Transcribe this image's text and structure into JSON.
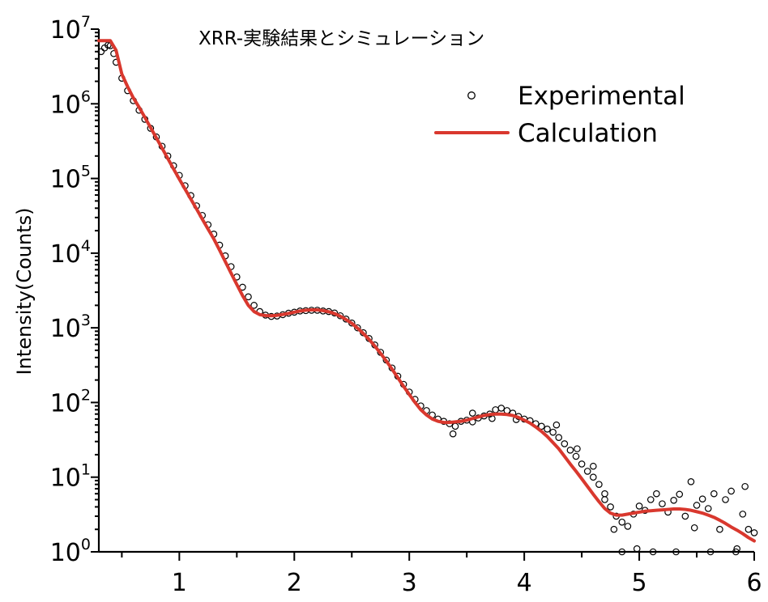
{
  "chart_data": {
    "type": "scatter",
    "title": "XRR-実験結果とシミュレーション",
    "xlabel": "",
    "ylabel": "Intensity(Counts)",
    "xlim": [
      0.3,
      6
    ],
    "ylim": [
      1,
      10000000
    ],
    "yscale": "log",
    "x_ticks": [
      1,
      2,
      3,
      4,
      5,
      6
    ],
    "y_ticks": [
      {
        "value": 1,
        "base": "10",
        "exp": "0"
      },
      {
        "value": 10,
        "base": "10",
        "exp": "1"
      },
      {
        "value": 100,
        "base": "10",
        "exp": "2"
      },
      {
        "value": 1000,
        "base": "10",
        "exp": "3"
      },
      {
        "value": 10000,
        "base": "10",
        "exp": "4"
      },
      {
        "value": 100000,
        "base": "10",
        "exp": "5"
      },
      {
        "value": 1000000,
        "base": "10",
        "exp": "6"
      },
      {
        "value": 10000000,
        "base": "10",
        "exp": "7"
      }
    ],
    "legend_position": "top-right",
    "grid": false,
    "series": [
      {
        "name": "Experimental",
        "style": "open-circle-markers",
        "color": "#000000",
        "points": [
          [
            0.32,
            5000000
          ],
          [
            0.35,
            5600000
          ],
          [
            0.38,
            6100000
          ],
          [
            0.4,
            6000000
          ],
          [
            0.43,
            4700000
          ],
          [
            0.45,
            3600000
          ],
          [
            0.5,
            2200000
          ],
          [
            0.55,
            1500000
          ],
          [
            0.6,
            1100000
          ],
          [
            0.65,
            820000
          ],
          [
            0.7,
            620000
          ],
          [
            0.75,
            470000
          ],
          [
            0.8,
            360000
          ],
          [
            0.85,
            270000
          ],
          [
            0.9,
            200000
          ],
          [
            0.95,
            148000
          ],
          [
            1.0,
            110000
          ],
          [
            1.05,
            80000
          ],
          [
            1.1,
            59000
          ],
          [
            1.15,
            43000
          ],
          [
            1.2,
            32000
          ],
          [
            1.25,
            24000
          ],
          [
            1.3,
            18000
          ],
          [
            1.35,
            12800
          ],
          [
            1.4,
            9200
          ],
          [
            1.45,
            6600
          ],
          [
            1.5,
            4800
          ],
          [
            1.55,
            3500
          ],
          [
            1.6,
            2600
          ],
          [
            1.65,
            2000
          ],
          [
            1.7,
            1650
          ],
          [
            1.75,
            1480
          ],
          [
            1.8,
            1420
          ],
          [
            1.85,
            1440
          ],
          [
            1.9,
            1500
          ],
          [
            1.95,
            1570
          ],
          [
            2.0,
            1620
          ],
          [
            2.05,
            1680
          ],
          [
            2.1,
            1700
          ],
          [
            2.15,
            1720
          ],
          [
            2.2,
            1720
          ],
          [
            2.25,
            1680
          ],
          [
            2.3,
            1650
          ],
          [
            2.35,
            1580
          ],
          [
            2.4,
            1450
          ],
          [
            2.45,
            1310
          ],
          [
            2.5,
            1160
          ],
          [
            2.55,
            1000
          ],
          [
            2.6,
            860
          ],
          [
            2.65,
            720
          ],
          [
            2.7,
            590
          ],
          [
            2.75,
            470
          ],
          [
            2.8,
            370
          ],
          [
            2.85,
            290
          ],
          [
            2.9,
            225
          ],
          [
            2.95,
            175
          ],
          [
            3.0,
            138
          ],
          [
            3.05,
            110
          ],
          [
            3.1,
            90
          ],
          [
            3.15,
            78
          ],
          [
            3.2,
            68
          ],
          [
            3.25,
            60
          ],
          [
            3.3,
            56
          ],
          [
            3.35,
            52
          ],
          [
            3.4,
            48
          ],
          [
            3.45,
            56
          ],
          [
            3.5,
            58
          ],
          [
            3.55,
            55
          ],
          [
            3.6,
            62
          ],
          [
            3.65,
            66
          ],
          [
            3.7,
            70
          ],
          [
            3.75,
            80
          ],
          [
            3.8,
            84
          ],
          [
            3.85,
            78
          ],
          [
            3.9,
            72
          ],
          [
            3.95,
            65
          ],
          [
            4.0,
            60
          ],
          [
            4.05,
            57
          ],
          [
            4.1,
            52
          ],
          [
            4.15,
            48
          ],
          [
            4.2,
            44
          ],
          [
            4.25,
            40
          ],
          [
            4.3,
            34
          ],
          [
            4.35,
            28
          ],
          [
            4.4,
            23
          ],
          [
            4.45,
            19
          ],
          [
            4.5,
            15
          ],
          [
            4.55,
            12
          ],
          [
            4.6,
            10
          ],
          [
            4.65,
            8
          ],
          [
            4.7,
            6
          ],
          [
            4.75,
            4
          ],
          [
            4.8,
            3
          ],
          [
            4.85,
            2.5
          ],
          [
            4.9,
            2.2
          ],
          [
            4.95,
            3.2
          ],
          [
            5.0,
            4.1
          ],
          [
            5.05,
            3.6
          ],
          [
            5.1,
            5.0
          ],
          [
            5.15,
            6.0
          ],
          [
            5.2,
            4.4
          ],
          [
            5.25,
            3.4
          ],
          [
            5.3,
            4.9
          ],
          [
            5.35,
            5.9
          ],
          [
            5.4,
            3.0
          ],
          [
            5.45,
            8.7
          ],
          [
            5.5,
            4.2
          ],
          [
            5.55,
            5.1
          ],
          [
            5.6,
            3.8
          ],
          [
            5.65,
            6.0
          ],
          [
            5.7,
            2.0
          ],
          [
            5.75,
            5.0
          ],
          [
            5.8,
            6.5
          ],
          [
            5.85,
            1.1
          ],
          [
            5.9,
            3.2
          ],
          [
            5.95,
            2.0
          ],
          [
            6.0,
            1.8
          ],
          [
            3.38,
            38
          ],
          [
            3.55,
            72
          ],
          [
            3.72,
            61
          ],
          [
            3.93,
            59
          ],
          [
            4.28,
            50
          ],
          [
            4.46,
            24
          ],
          [
            4.6,
            14
          ],
          [
            4.7,
            5
          ],
          [
            4.78,
            2
          ],
          [
            4.85,
            1.0
          ],
          [
            4.98,
            1.1
          ],
          [
            5.12,
            1.0
          ],
          [
            5.32,
            1.0
          ],
          [
            5.48,
            2.1
          ],
          [
            5.62,
            1.0
          ],
          [
            5.84,
            1.0
          ],
          [
            5.92,
            7.5
          ]
        ]
      },
      {
        "name": "Calculation",
        "style": "line",
        "color": "#d9382e",
        "points": [
          [
            0.3,
            7000000
          ],
          [
            0.4,
            7000000
          ],
          [
            0.45,
            5200000
          ],
          [
            0.5,
            2500000
          ],
          [
            0.55,
            1700000
          ],
          [
            0.6,
            1200000
          ],
          [
            0.65,
            900000
          ],
          [
            0.7,
            660000
          ],
          [
            0.75,
            480000
          ],
          [
            0.8,
            350000
          ],
          [
            0.85,
            255000
          ],
          [
            0.9,
            185000
          ],
          [
            0.95,
            134000
          ],
          [
            1.0,
            98000
          ],
          [
            1.05,
            72000
          ],
          [
            1.1,
            53000
          ],
          [
            1.15,
            39000
          ],
          [
            1.2,
            28500
          ],
          [
            1.25,
            21000
          ],
          [
            1.3,
            15500
          ],
          [
            1.35,
            11000
          ],
          [
            1.4,
            7700
          ],
          [
            1.45,
            5400
          ],
          [
            1.5,
            3800
          ],
          [
            1.55,
            2700
          ],
          [
            1.6,
            2000
          ],
          [
            1.65,
            1650
          ],
          [
            1.7,
            1500
          ],
          [
            1.75,
            1460
          ],
          [
            1.8,
            1450
          ],
          [
            1.85,
            1470
          ],
          [
            1.9,
            1510
          ],
          [
            1.95,
            1560
          ],
          [
            2.0,
            1620
          ],
          [
            2.05,
            1680
          ],
          [
            2.1,
            1720
          ],
          [
            2.15,
            1740
          ],
          [
            2.2,
            1740
          ],
          [
            2.25,
            1700
          ],
          [
            2.3,
            1640
          ],
          [
            2.35,
            1550
          ],
          [
            2.4,
            1430
          ],
          [
            2.45,
            1290
          ],
          [
            2.5,
            1150
          ],
          [
            2.55,
            990
          ],
          [
            2.6,
            840
          ],
          [
            2.65,
            700
          ],
          [
            2.7,
            570
          ],
          [
            2.75,
            455
          ],
          [
            2.8,
            360
          ],
          [
            2.85,
            280
          ],
          [
            2.9,
            215
          ],
          [
            2.95,
            165
          ],
          [
            3.0,
            128
          ],
          [
            3.05,
            100
          ],
          [
            3.1,
            80
          ],
          [
            3.15,
            68
          ],
          [
            3.2,
            60
          ],
          [
            3.25,
            56
          ],
          [
            3.3,
            54
          ],
          [
            3.35,
            54
          ],
          [
            3.4,
            55
          ],
          [
            3.45,
            56
          ],
          [
            3.5,
            58
          ],
          [
            3.55,
            61
          ],
          [
            3.6,
            64
          ],
          [
            3.65,
            67
          ],
          [
            3.7,
            69
          ],
          [
            3.75,
            70
          ],
          [
            3.8,
            70
          ],
          [
            3.85,
            69
          ],
          [
            3.9,
            67
          ],
          [
            3.95,
            63
          ],
          [
            4.0,
            58
          ],
          [
            4.05,
            53
          ],
          [
            4.1,
            47
          ],
          [
            4.15,
            41
          ],
          [
            4.2,
            35
          ],
          [
            4.25,
            29
          ],
          [
            4.3,
            24
          ],
          [
            4.35,
            19
          ],
          [
            4.4,
            15
          ],
          [
            4.45,
            12
          ],
          [
            4.5,
            9.5
          ],
          [
            4.55,
            7.5
          ],
          [
            4.6,
            5.9
          ],
          [
            4.65,
            4.7
          ],
          [
            4.7,
            3.8
          ],
          [
            4.75,
            3.3
          ],
          [
            4.8,
            3.1
          ],
          [
            4.85,
            3.1
          ],
          [
            4.9,
            3.2
          ],
          [
            4.95,
            3.3
          ],
          [
            5.0,
            3.4
          ],
          [
            5.05,
            3.5
          ],
          [
            5.1,
            3.55
          ],
          [
            5.15,
            3.6
          ],
          [
            5.2,
            3.65
          ],
          [
            5.25,
            3.7
          ],
          [
            5.3,
            3.75
          ],
          [
            5.35,
            3.75
          ],
          [
            5.4,
            3.7
          ],
          [
            5.45,
            3.6
          ],
          [
            5.5,
            3.45
          ],
          [
            5.55,
            3.3
          ],
          [
            5.6,
            3.1
          ],
          [
            5.65,
            2.9
          ],
          [
            5.7,
            2.65
          ],
          [
            5.75,
            2.4
          ],
          [
            5.8,
            2.15
          ],
          [
            5.85,
            1.95
          ],
          [
            5.9,
            1.75
          ],
          [
            5.95,
            1.55
          ],
          [
            6.0,
            1.4
          ]
        ]
      }
    ]
  }
}
